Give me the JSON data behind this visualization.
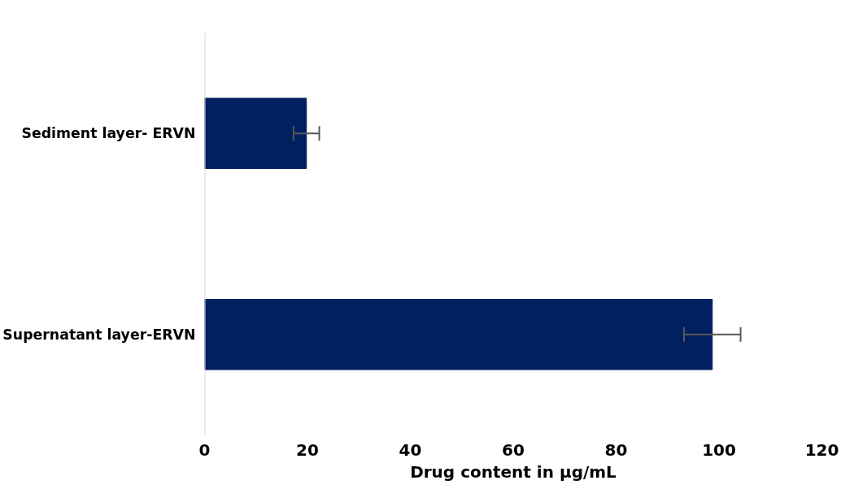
{
  "chart_data": {
    "type": "bar",
    "orientation": "horizontal",
    "xlabel": "Drug content in µg/mL",
    "categories": [
      "Sediment layer- ERVN",
      "Supernatant layer-ERVN"
    ],
    "values": [
      19.8,
      98.7
    ],
    "errors": [
      2.5,
      5.5
    ],
    "color": "#002060",
    "xlim": [
      0,
      120
    ],
    "xticks": [
      0,
      20,
      40,
      60,
      80,
      100,
      120
    ],
    "grid": false
  }
}
